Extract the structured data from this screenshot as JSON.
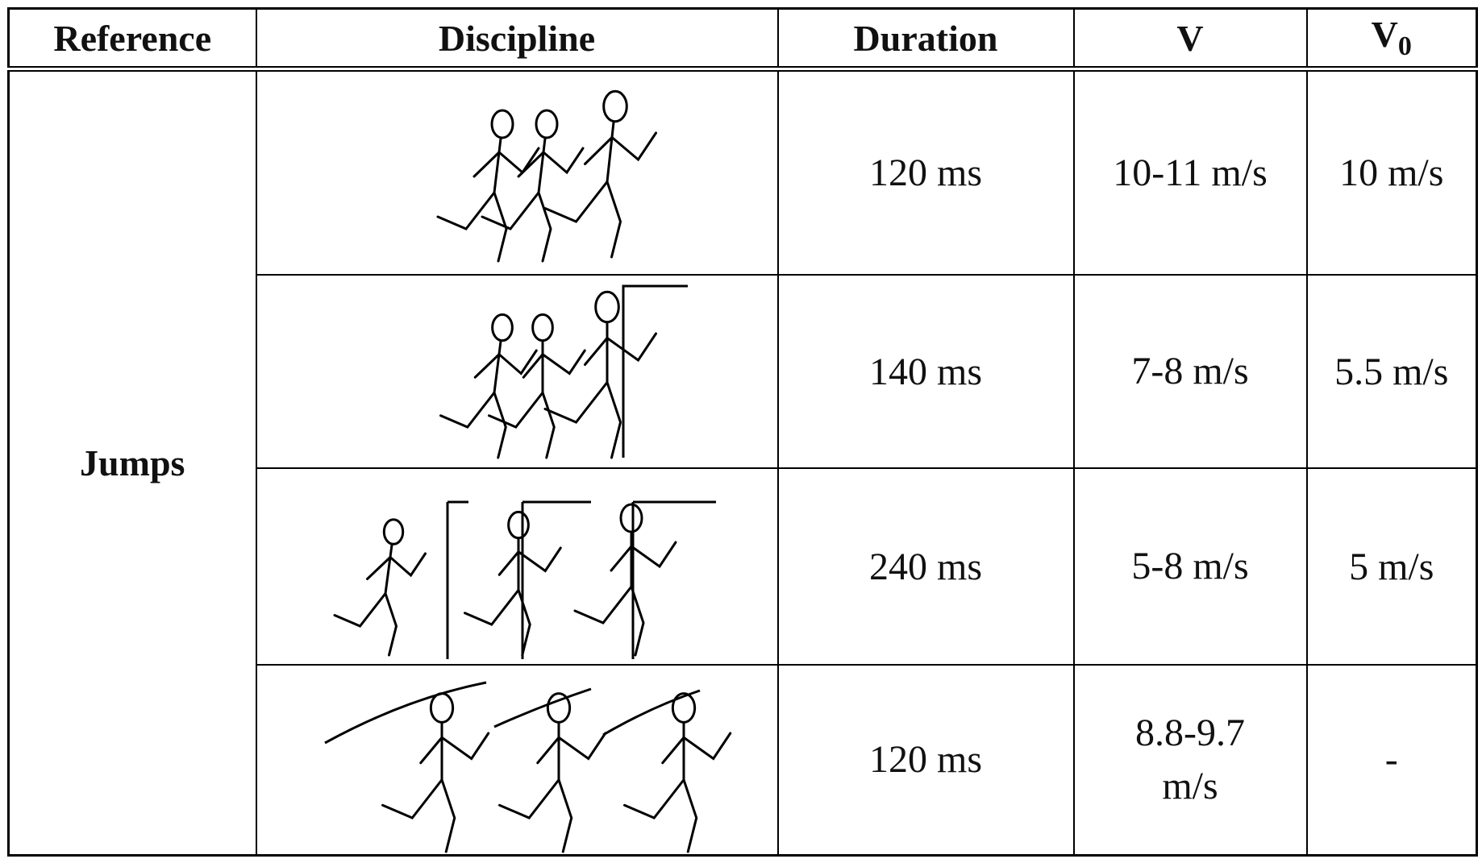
{
  "table": {
    "header": [
      {
        "text": "Reference"
      },
      {
        "text": "Discipline"
      },
      {
        "text": "Duration"
      },
      {
        "text": "V"
      },
      {
        "text": "V",
        "subscript": "0"
      }
    ],
    "group": "Jumps",
    "rows": [
      {
        "duration": "120 ms",
        "v": "10-11 m/s",
        "v0": "10 m/s"
      },
      {
        "duration": "140 ms",
        "v": "7-8 m/s",
        "v0": "5.5 m/s"
      },
      {
        "duration": "240 ms",
        "v": "5-8 m/s",
        "v0": "5 m/s"
      },
      {
        "duration": "120 ms",
        "v": "8.8-9.7 m/s",
        "v0": "-"
      }
    ]
  }
}
